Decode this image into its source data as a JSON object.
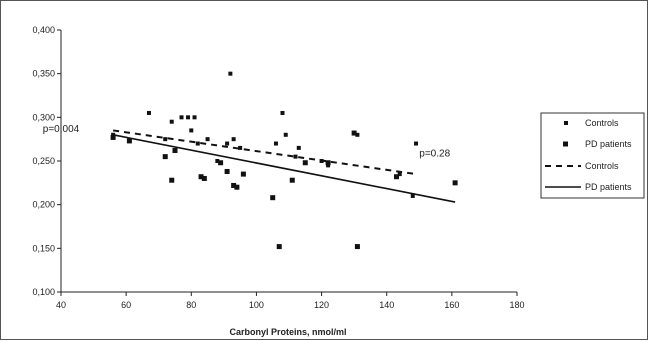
{
  "chart_data": {
    "type": "scatter",
    "title": "",
    "xlabel": "Carbonyl Proteins, nmol/ml",
    "ylabel": "",
    "xlim": [
      40,
      180
    ],
    "ylim": [
      0.1,
      0.4
    ],
    "x_ticks": [
      40,
      60,
      80,
      100,
      120,
      140,
      160,
      180
    ],
    "x_tick_labels": [
      "40",
      "60",
      "80",
      "100",
      "120",
      "140",
      "160",
      "180"
    ],
    "y_ticks": [
      0.1,
      0.15,
      0.2,
      0.25,
      0.3,
      0.35,
      0.4
    ],
    "y_tick_labels": [
      "0,100",
      "0,150",
      "0,200",
      "0,250",
      "0,300",
      "0,350",
      "0,400"
    ],
    "grid": false,
    "legend_position": "right",
    "series": [
      {
        "name": "Controls",
        "kind": "points",
        "marker": "small-square",
        "x": [
          56,
          67,
          72,
          74,
          77,
          79,
          80,
          81,
          82,
          85,
          88,
          91,
          92,
          93,
          95,
          106,
          108,
          109,
          112,
          113,
          120,
          122,
          131,
          144,
          148,
          149
        ],
        "y": [
          0.28,
          0.305,
          0.275,
          0.295,
          0.3,
          0.3,
          0.285,
          0.3,
          0.27,
          0.275,
          0.25,
          0.27,
          0.35,
          0.275,
          0.265,
          0.27,
          0.305,
          0.28,
          0.255,
          0.265,
          0.25,
          0.245,
          0.28,
          0.235,
          0.21,
          0.27
        ]
      },
      {
        "name": "PD patients",
        "kind": "points",
        "marker": "square",
        "x": [
          56,
          61,
          72,
          74,
          75,
          83,
          84,
          89,
          91,
          93,
          94,
          96,
          105,
          107,
          111,
          115,
          122,
          130,
          131,
          143,
          161
        ],
        "y": [
          0.277,
          0.273,
          0.255,
          0.228,
          0.262,
          0.232,
          0.23,
          0.248,
          0.238,
          0.222,
          0.22,
          0.235,
          0.208,
          0.152,
          0.228,
          0.248,
          0.248,
          0.282,
          0.152,
          0.232,
          0.225
        ]
      },
      {
        "name": "Controls",
        "kind": "trendline",
        "line_style": "dashed",
        "x": [
          56,
          149
        ],
        "y": [
          0.285,
          0.235
        ]
      },
      {
        "name": "PD patients",
        "kind": "trendline",
        "line_style": "solid",
        "x": [
          56,
          161
        ],
        "y": [
          0.28,
          0.203
        ]
      }
    ],
    "annotations": [
      {
        "text": "p=0.004",
        "x": 40,
        "y": 0.283
      },
      {
        "text": "p=0.28",
        "x": 150,
        "y": 0.255
      }
    ],
    "legend": [
      "Controls",
      "PD patients",
      "Controls",
      "PD patients"
    ],
    "colors": {
      "ink": "#111111",
      "axis": "#222222",
      "frame": "#555555"
    }
  }
}
